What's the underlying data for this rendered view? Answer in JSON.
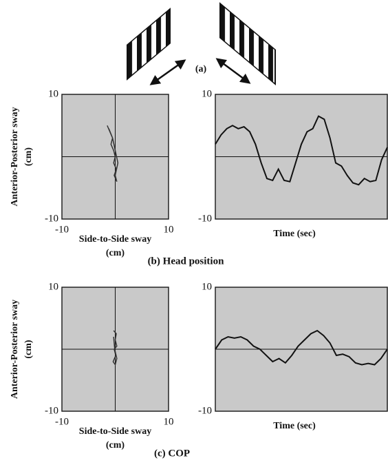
{
  "figure": {
    "a_label": "(a)",
    "b_label": "(b) Head position",
    "c_label": "(c) COP"
  },
  "chart_data": [
    {
      "type": "trajectory",
      "ylabel": "Anterior-Posterior sway",
      "ylabel_unit": "(cm)",
      "xlabel": "Side-to-Side sway",
      "xlabel_unit": "(cm)",
      "xlim": [
        -10,
        10
      ],
      "ylim": [
        -10,
        10
      ],
      "xticks": [
        -10,
        10
      ],
      "yticks": [
        10,
        -10
      ],
      "color": "#333333",
      "x": [
        -1.5,
        -1,
        -0.5,
        -0.8,
        -0.3,
        0,
        -0.3,
        0.2,
        -0.2,
        0.3,
        0,
        0.5,
        0,
        -0.5,
        -1.2
      ],
      "values": [
        5,
        4,
        3,
        2,
        1,
        0,
        -1,
        -2,
        -3,
        -4,
        -3,
        -1,
        1,
        3,
        4.5
      ]
    },
    {
      "type": "timeseries",
      "xlabel": "Time (sec)",
      "ylim": [
        -10,
        10
      ],
      "yticks": [
        10,
        -10
      ],
      "color": "#111111",
      "values": [
        2,
        3.5,
        4.5,
        5,
        4.5,
        4.8,
        4,
        2,
        -1,
        -3.5,
        -3.8,
        -2,
        -3.8,
        -4,
        -1,
        2,
        4,
        4.5,
        6.5,
        6,
        3,
        -1,
        -1.5,
        -3,
        -4.2,
        -4.5,
        -3.5,
        -4,
        -3.8,
        -0.5,
        1.5
      ]
    },
    {
      "type": "trajectory",
      "ylabel": "Anterior-Posterior sway",
      "ylabel_unit": "(cm)",
      "xlabel": "Side-to-Side sway",
      "xlabel_unit": "(cm)",
      "xlim": [
        -10,
        10
      ],
      "ylim": [
        -10,
        10
      ],
      "xticks": [
        -10,
        10
      ],
      "yticks": [
        10,
        -10
      ],
      "color": "#333333",
      "x": [
        -0.3,
        0.2,
        0,
        0.3,
        -0.2,
        0.1,
        -0.4,
        0,
        0.3,
        -0.1,
        -0.3
      ],
      "values": [
        3,
        2.5,
        1.5,
        0.5,
        0,
        -1,
        -2,
        -2.5,
        -1.5,
        0,
        2
      ]
    },
    {
      "type": "timeseries",
      "xlabel": "Time (sec)",
      "ylim": [
        -10,
        10
      ],
      "yticks": [
        10,
        -10
      ],
      "color": "#111111",
      "values": [
        0,
        1.5,
        2,
        1.8,
        2,
        1.5,
        0.5,
        0,
        -1,
        -2,
        -1.5,
        -2.2,
        -1,
        0.5,
        1.5,
        2.5,
        3,
        2.2,
        1,
        -1,
        -0.8,
        -1.2,
        -2.2,
        -2.5,
        -2.3,
        -2.5,
        -1.5,
        0
      ]
    }
  ]
}
